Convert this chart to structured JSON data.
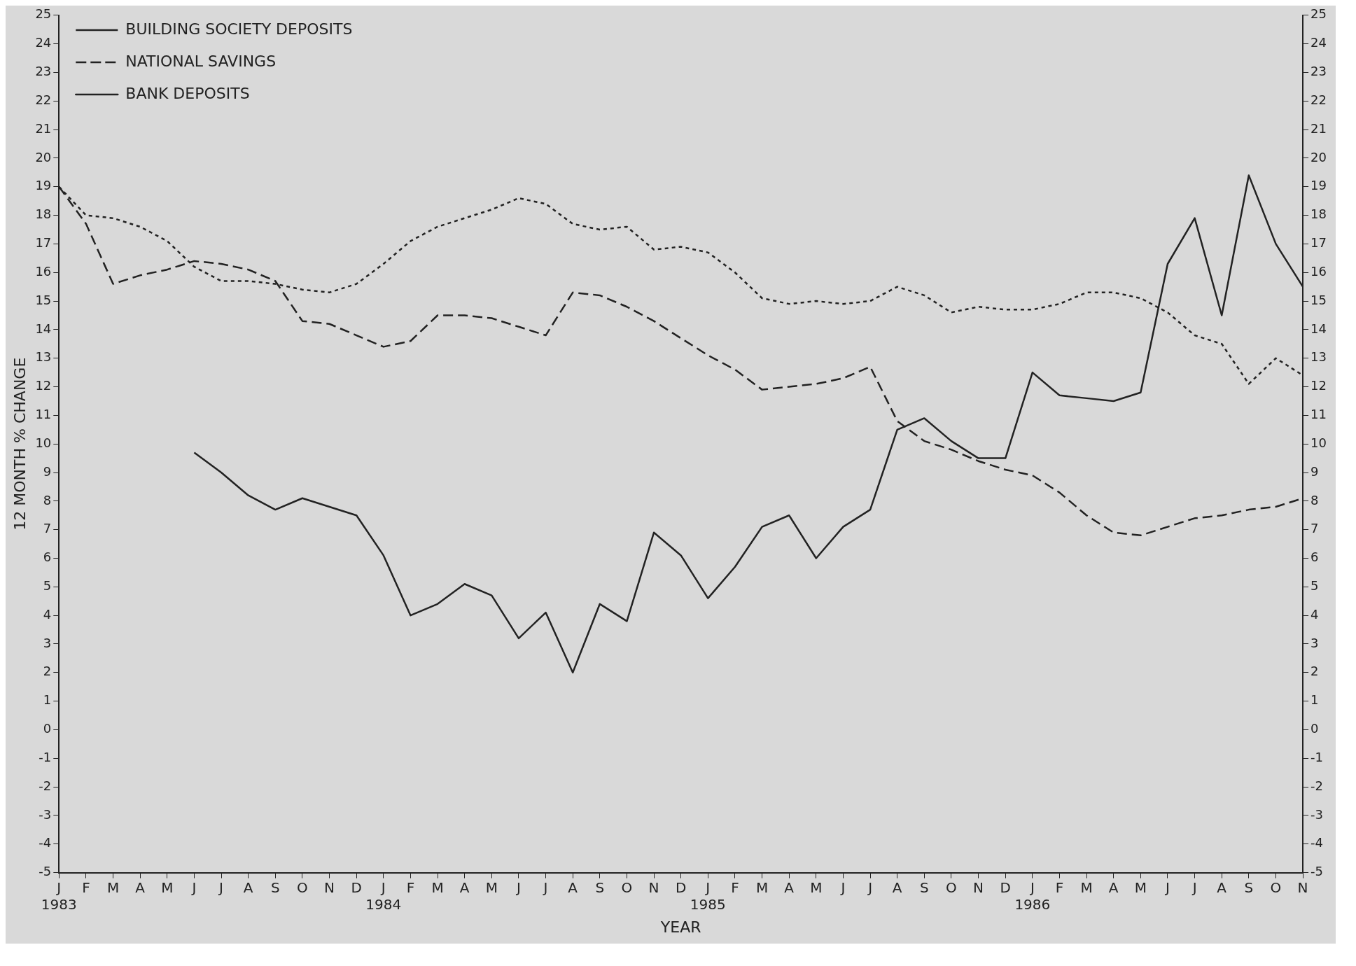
{
  "chart_data": {
    "type": "line",
    "xlabel": "YEAR",
    "ylabel": "12 MONTH % CHANGE",
    "categories": [
      "J\n1983",
      "F",
      "M",
      "A",
      "M",
      "J",
      "J",
      "A",
      "S",
      "O",
      "N",
      "D",
      "J\n1984",
      "F",
      "M",
      "A",
      "M",
      "J",
      "J",
      "A",
      "S",
      "O",
      "N",
      "D",
      "J\n1985",
      "F",
      "M",
      "A",
      "M",
      "J",
      "J",
      "A",
      "S",
      "O",
      "N",
      "D",
      "J\n1986",
      "F",
      "M",
      "A",
      "M",
      "J",
      "J",
      "A",
      "S",
      "O",
      "N"
    ],
    "series": [
      {
        "name": "BUILDING SOCIETY DEPOSITS",
        "color": "#222222",
        "line_style": "dotted",
        "values": [
          19,
          18,
          17.9,
          17.6,
          17.1,
          16.2,
          15.7,
          15.7,
          15.6,
          15.4,
          15.3,
          15.6,
          16.3,
          17.1,
          17.6,
          17.9,
          18.2,
          18.6,
          18.4,
          17.7,
          17.5,
          17.6,
          16.8,
          16.9,
          16.7,
          16.0,
          15.1,
          14.9,
          15.0,
          14.9,
          15.0,
          15.5,
          15.2,
          14.6,
          14.8,
          14.7,
          14.7,
          14.9,
          15.3,
          15.3,
          15.1,
          14.6,
          13.8,
          13.5,
          12.1,
          13.0,
          12.4
        ]
      },
      {
        "name": "NATIONAL SAVINGS",
        "color": "#222222",
        "line_style": "dashed",
        "values": [
          19,
          17.7,
          15.6,
          15.9,
          16.1,
          16.4,
          16.3,
          16.1,
          15.7,
          14.3,
          14.2,
          13.8,
          13.4,
          13.6,
          14.5,
          14.5,
          14.4,
          14.1,
          13.8,
          15.3,
          15.2,
          14.8,
          14.3,
          13.7,
          13.1,
          12.6,
          11.9,
          12.0,
          12.1,
          12.3,
          12.7,
          10.8,
          10.1,
          9.8,
          9.4,
          9.1,
          8.9,
          8.3,
          7.5,
          6.9,
          6.8,
          7.1,
          7.4,
          7.5,
          7.7,
          7.8,
          8.1
        ]
      },
      {
        "name": "BANK DEPOSITS",
        "color": "#222222",
        "line_style": "solid",
        "values": [
          null,
          null,
          null,
          null,
          null,
          9.7,
          9.0,
          8.2,
          7.7,
          8.1,
          7.8,
          7.5,
          6.1,
          4.0,
          4.4,
          5.1,
          4.7,
          3.2,
          4.1,
          2.0,
          4.4,
          3.8,
          6.9,
          6.1,
          4.6,
          5.7,
          7.1,
          7.5,
          6.0,
          7.1,
          7.7,
          10.5,
          10.9,
          10.1,
          9.5,
          9.5,
          12.5,
          11.7,
          11.6,
          11.5,
          11.8,
          16.3,
          17.9,
          14.5,
          19.4,
          17.0,
          15.5
        ]
      }
    ],
    "ylim": [
      -5,
      25
    ],
    "yticks": [
      -5,
      -4,
      -3,
      -2,
      -1,
      0,
      1,
      2,
      3,
      4,
      5,
      6,
      7,
      8,
      9,
      10,
      11,
      12,
      13,
      14,
      15,
      16,
      17,
      18,
      19,
      20,
      21,
      22,
      23,
      24,
      25
    ],
    "y2lim": [
      -5,
      25
    ],
    "y2ticks": [
      -5,
      -4,
      -3,
      -2,
      -1,
      0,
      1,
      2,
      3,
      4,
      5,
      6,
      7,
      8,
      9,
      10,
      11,
      12,
      13,
      14,
      15,
      16,
      17,
      18,
      19,
      20,
      21,
      22,
      23,
      24,
      25
    ],
    "grid": false,
    "legend": "top left",
    "marker": "none"
  }
}
